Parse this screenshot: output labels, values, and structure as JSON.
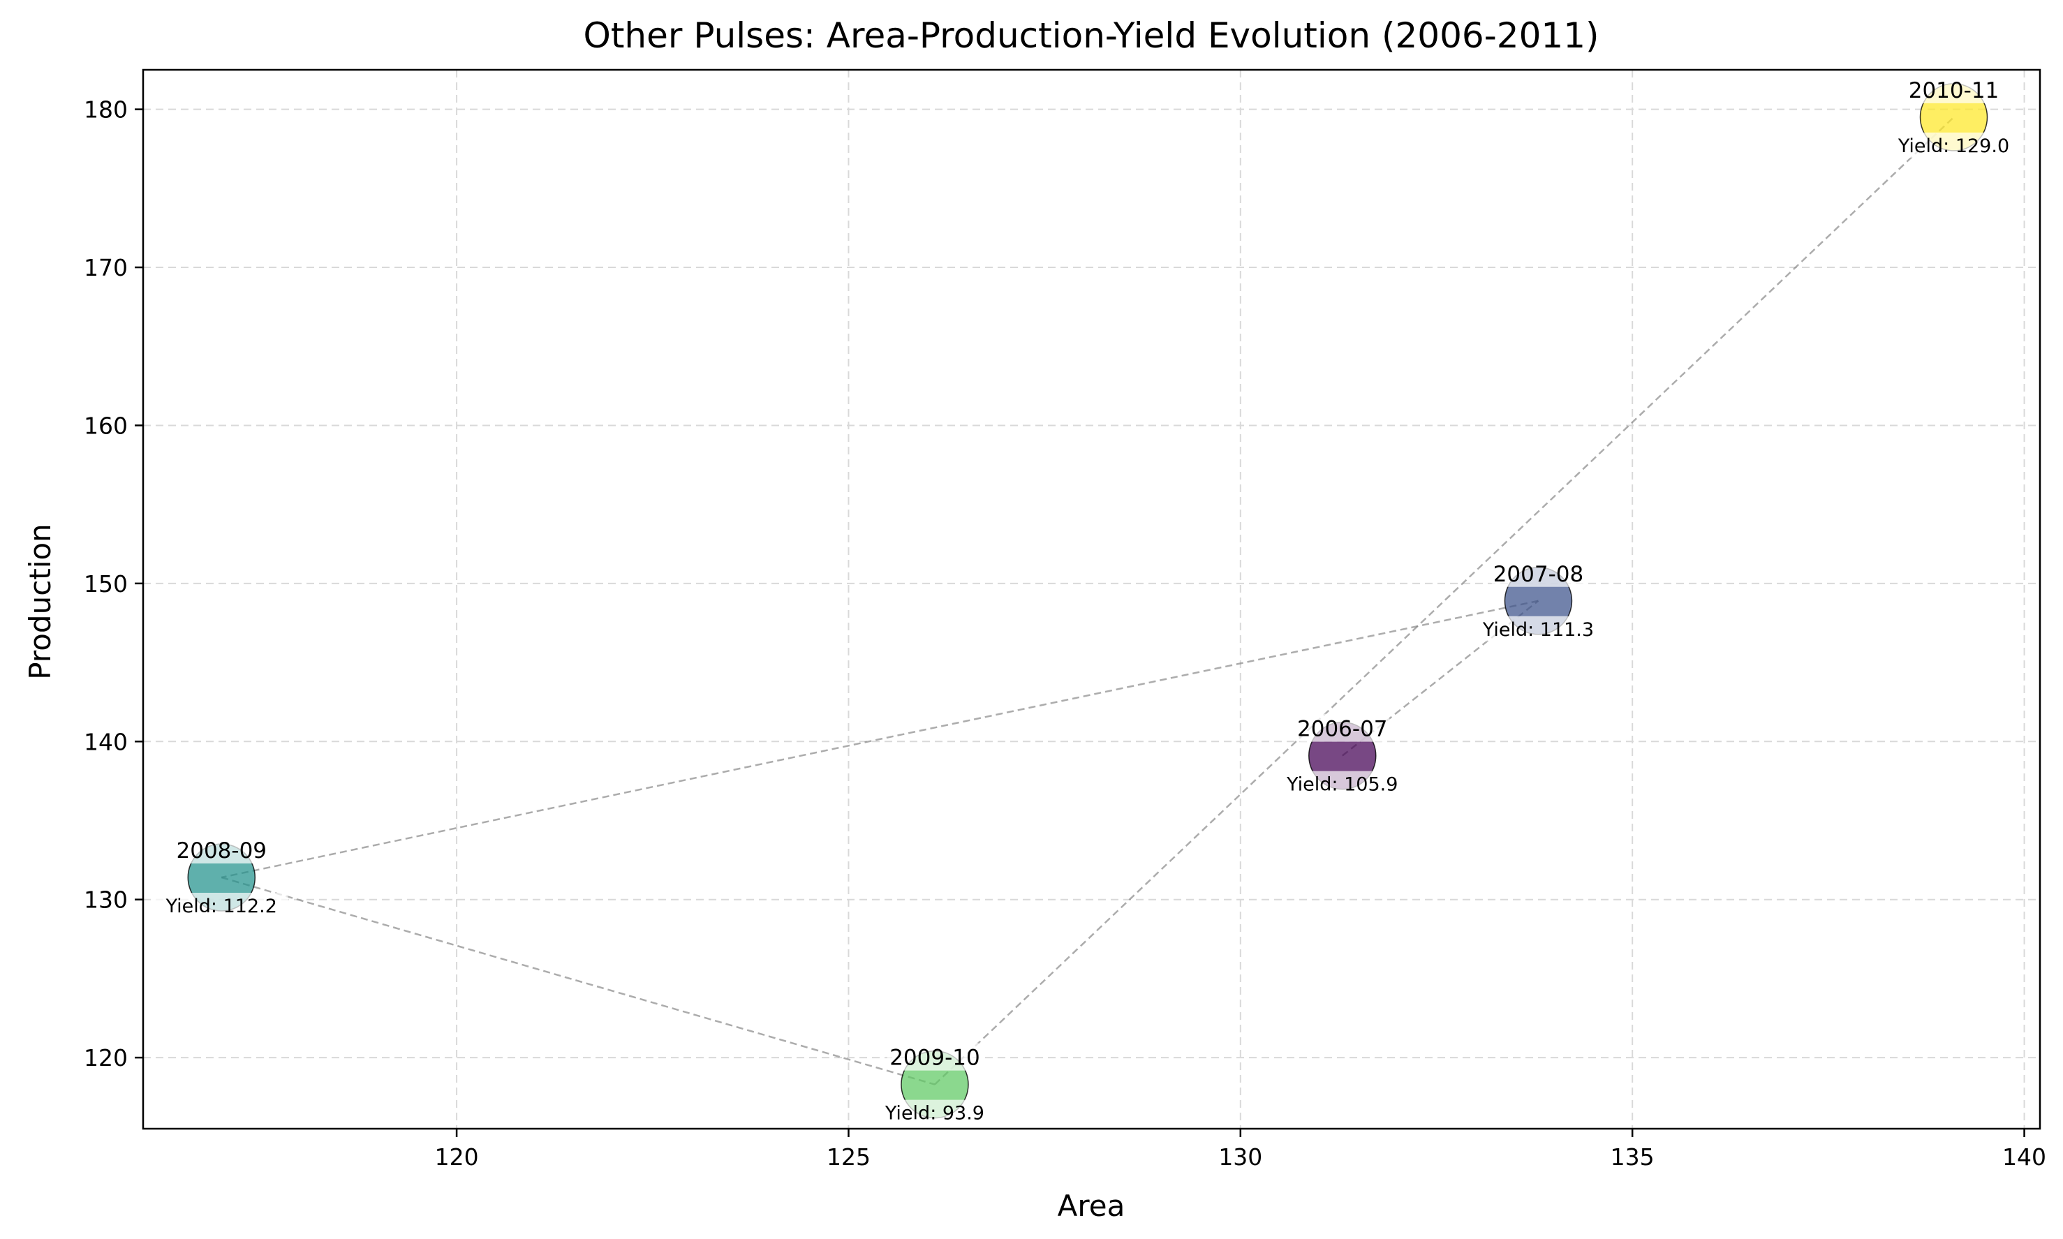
{
  "chart_data": {
    "type": "scatter",
    "title": "Other Pulses: Area-Production-Yield Evolution (2006-2011)",
    "xlabel": "Area",
    "ylabel": "Production",
    "xlim": [
      116.0,
      140.2
    ],
    "ylim": [
      115.5,
      182.5
    ],
    "xticks": [
      120,
      125,
      130,
      135,
      140
    ],
    "yticks": [
      120,
      130,
      140,
      150,
      160,
      170,
      180
    ],
    "grid": true,
    "connector": "dashed gray line linking points in chronological order",
    "yield_label_prefix": "Yield: ",
    "points": [
      {
        "label": "2006-07",
        "x": 131.3,
        "y": 139.1,
        "yield": "105.9",
        "color": "#440154"
      },
      {
        "label": "2007-08",
        "x": 133.8,
        "y": 148.9,
        "yield": "111.3",
        "color": "#3b528b"
      },
      {
        "label": "2008-09",
        "x": 117.0,
        "y": 131.4,
        "yield": "112.2",
        "color": "#21918c"
      },
      {
        "label": "2009-10",
        "x": 126.1,
        "y": 118.3,
        "yield": "93.9",
        "color": "#5ec962"
      },
      {
        "label": "2010-11",
        "x": 139.1,
        "y": 179.5,
        "yield": "129.0",
        "color": "#fde725"
      }
    ]
  }
}
